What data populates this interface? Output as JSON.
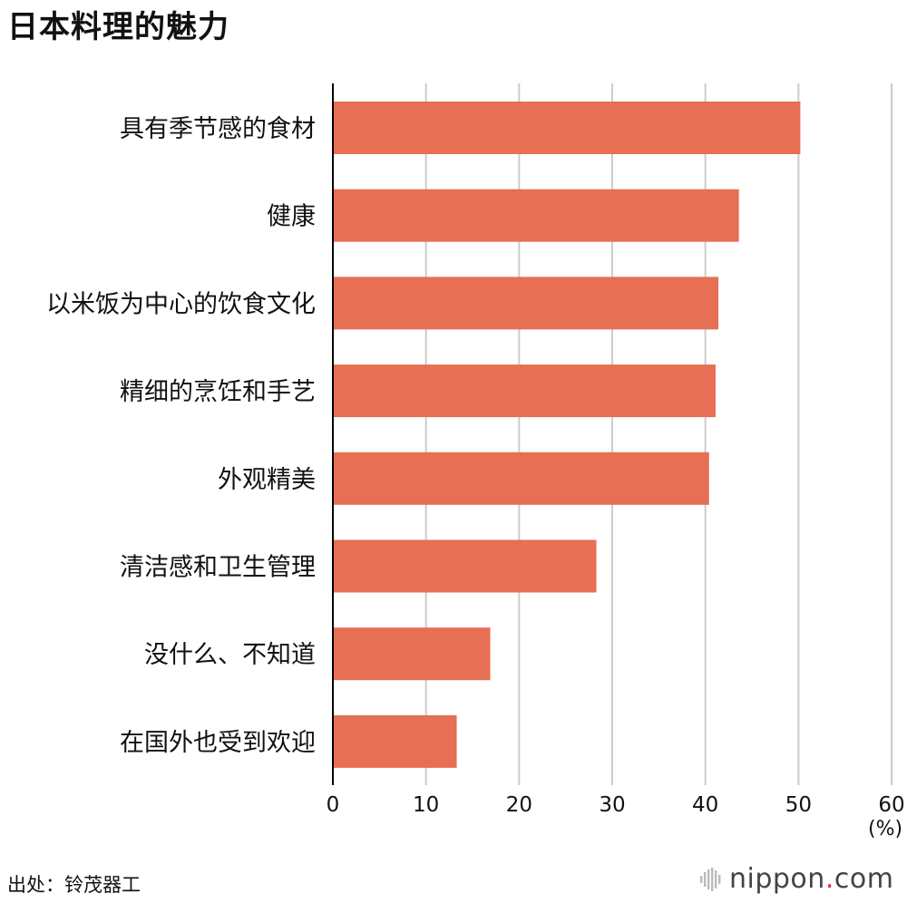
{
  "title": "日本料理的魅力",
  "unit_label": "(%)",
  "source": "出处：铃茂器工",
  "logo": {
    "name": "nippon",
    "dot": ".",
    "tld": "com"
  },
  "colors": {
    "bar": "#e66f54",
    "grid": "#cccccc",
    "axis": "#000000",
    "logo_dot": "#d9353f"
  },
  "chart_data": {
    "type": "bar",
    "orientation": "horizontal",
    "categories": [
      "具有季节感的食材",
      "健康",
      "以米饭为中心的饮食文化",
      "精细的烹饪和手艺",
      "外观精美",
      "清洁感和卫生管理",
      "没什么、不知道",
      "在国外也受到欢迎"
    ],
    "values": [
      50.2,
      43.6,
      41.4,
      41.1,
      40.4,
      28.3,
      16.9,
      13.3
    ],
    "xlim": [
      0,
      60
    ],
    "xticks": [
      0,
      10,
      20,
      30,
      40,
      50,
      60
    ],
    "xlabel": "(%)",
    "grid": true
  }
}
